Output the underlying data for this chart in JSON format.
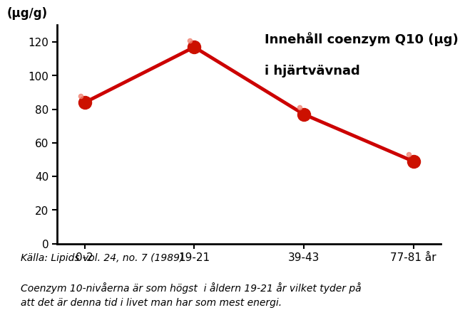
{
  "categories": [
    "0-2",
    "19-21",
    "39-43",
    "77-81 år"
  ],
  "x_positions": [
    0,
    1,
    2,
    3
  ],
  "values": [
    84,
    117,
    77,
    49
  ],
  "line_color": "#cc0000",
  "marker_color": "#cc1100",
  "marker_highlight": "#f08070",
  "title_line1": "Innehåll coenzym Q10 (µg)",
  "title_line2": "i hjärtvävnad",
  "ylabel": "(µg/g)",
  "ylim": [
    0,
    130
  ],
  "yticks": [
    0,
    20,
    40,
    60,
    80,
    100,
    120
  ],
  "source_text": "Källa: Lipids vol. 24, no. 7 (1989)",
  "caption_text": "Coenzym 10-nivåerna är som högst  i åldern 19-21 år vilket tyder på\natt det är denna tid i livet man har som mest energi.",
  "background_color": "#ffffff",
  "title_fontsize": 13,
  "axis_fontsize": 11,
  "marker_size": 13,
  "line_width": 3.5
}
